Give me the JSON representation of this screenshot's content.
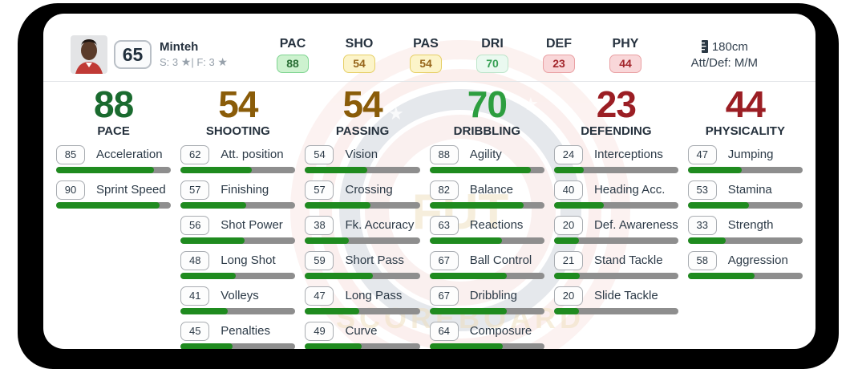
{
  "player": {
    "rating": "65",
    "name": "Minteh",
    "skill_moves": "S: 3",
    "weak_foot": "F: 3",
    "star": "★",
    "separator": "|",
    "height": "180cm",
    "att_def": "Att/Def: M/M"
  },
  "top_stats": [
    {
      "label": "PAC",
      "value": "88",
      "tier": "high"
    },
    {
      "label": "SHO",
      "value": "54",
      "tier": "mid"
    },
    {
      "label": "PAS",
      "value": "54",
      "tier": "mid"
    },
    {
      "label": "DRI",
      "value": "70",
      "tier": "good"
    },
    {
      "label": "DEF",
      "value": "23",
      "tier": "low"
    },
    {
      "label": "PHY",
      "value": "44",
      "tier": "low"
    }
  ],
  "categories": [
    {
      "name": "PACE",
      "value": "88",
      "tier": "green",
      "stats": [
        {
          "value": 85,
          "label": "Acceleration"
        },
        {
          "value": 90,
          "label": "Sprint Speed"
        }
      ]
    },
    {
      "name": "SHOOTING",
      "value": "54",
      "tier": "bronze",
      "stats": [
        {
          "value": 62,
          "label": "Att. position"
        },
        {
          "value": 57,
          "label": "Finishing"
        },
        {
          "value": 56,
          "label": "Shot Power"
        },
        {
          "value": 48,
          "label": "Long Shot"
        },
        {
          "value": 41,
          "label": "Volleys"
        },
        {
          "value": 45,
          "label": "Penalties"
        }
      ]
    },
    {
      "name": "PASSING",
      "value": "54",
      "tier": "bronze",
      "stats": [
        {
          "value": 54,
          "label": "Vision"
        },
        {
          "value": 57,
          "label": "Crossing"
        },
        {
          "value": 38,
          "label": "Fk. Accuracy"
        },
        {
          "value": 59,
          "label": "Short Pass"
        },
        {
          "value": 47,
          "label": "Long Pass"
        },
        {
          "value": 49,
          "label": "Curve"
        }
      ]
    },
    {
      "name": "DRIBBLING",
      "value": "70",
      "tier": "lightgreen",
      "stats": [
        {
          "value": 88,
          "label": "Agility"
        },
        {
          "value": 82,
          "label": "Balance"
        },
        {
          "value": 63,
          "label": "Reactions"
        },
        {
          "value": 67,
          "label": "Ball Control"
        },
        {
          "value": 67,
          "label": "Dribbling"
        },
        {
          "value": 64,
          "label": "Composure"
        }
      ]
    },
    {
      "name": "DEFENDING",
      "value": "23",
      "tier": "red",
      "stats": [
        {
          "value": 24,
          "label": "Interceptions"
        },
        {
          "value": 40,
          "label": "Heading Acc."
        },
        {
          "value": 20,
          "label": "Def. Awareness"
        },
        {
          "value": 21,
          "label": "Stand Tackle"
        },
        {
          "value": 20,
          "label": "Slide Tackle"
        }
      ]
    },
    {
      "name": "PHYSICALITY",
      "value": "44",
      "tier": "red",
      "stats": [
        {
          "value": 47,
          "label": "Jumping"
        },
        {
          "value": 53,
          "label": "Stamina"
        },
        {
          "value": 33,
          "label": "Strength"
        },
        {
          "value": 58,
          "label": "Aggression"
        }
      ]
    }
  ],
  "watermark": {
    "line1": "FUT",
    "line2": "SCOREBOARD"
  },
  "colors": {
    "bar_fill": "#1f8b1f",
    "bar_track": "#8e8e8e",
    "rating_green": "#1a6b2f",
    "rating_bronze": "#8a5c09",
    "rating_lightgreen": "#2d9e3f",
    "rating_red": "#9b1e24",
    "badge_high_bg": "#cdf2cf",
    "badge_mid_bg": "#fcf4c9",
    "badge_good_bg": "#eaf9f0",
    "badge_low_bg": "#f9d7d9",
    "text_navy": "#2b3844",
    "backdrop": "#000000"
  }
}
